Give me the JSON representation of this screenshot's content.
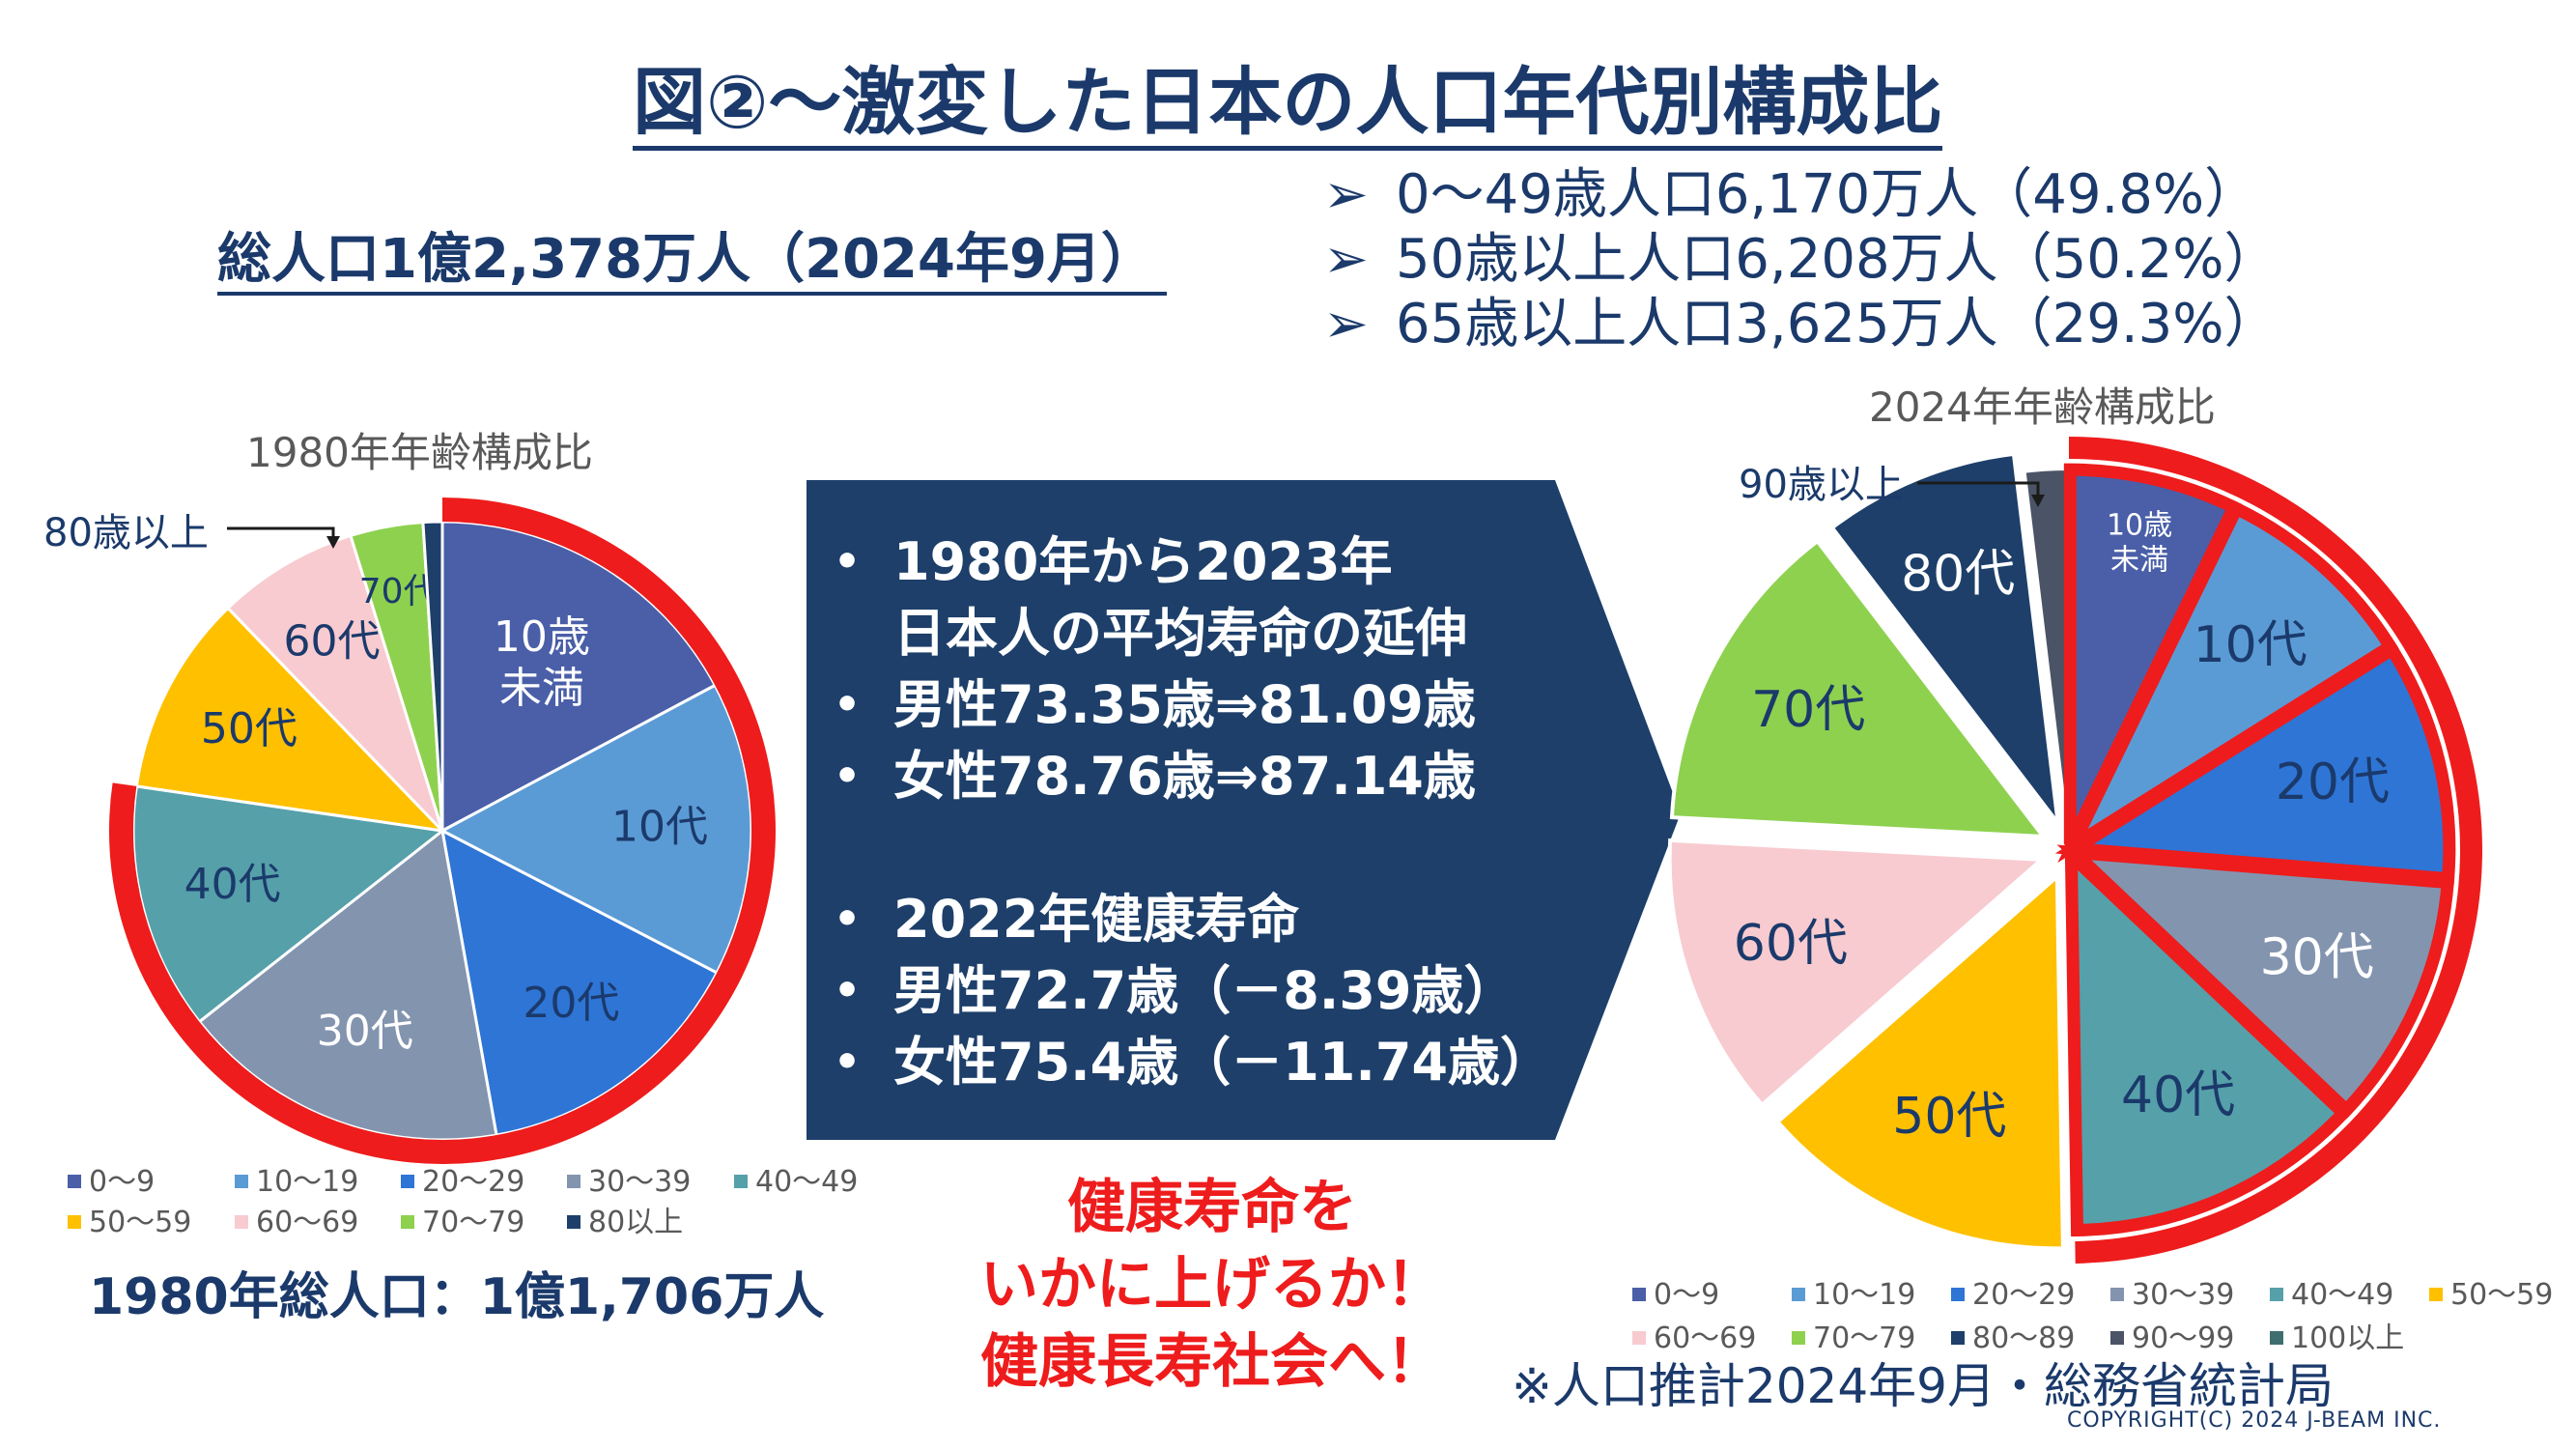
{
  "title": "図②～激変した日本の人口年代別構成比",
  "total_population": "総人口1億2,378万人（2024年9月）",
  "population_bullets": [
    {
      "mark": "➢",
      "text": "0～49歳人口6,170万人（49.8%）"
    },
    {
      "mark": "➢",
      "text": "50歳以上人口6,208万人（50.2%）"
    },
    {
      "mark": "➢",
      "text": "65歳以上人口3,625万人（29.3%）"
    }
  ],
  "life_expectancy_box": {
    "bullet": "•",
    "lines": [
      "1980年から2023年",
      "日本人の平均寿命の延伸",
      "男性73.35歳⇒81.09歳",
      "女性78.76歳⇒87.14歳",
      "2022年健康寿命",
      "男性72.7歳（－8.39歳）",
      "女性75.4歳（－11.74歳）"
    ]
  },
  "slogan": [
    "健康寿命を",
    "いかに上げるか！",
    "健康長寿社会へ！"
  ],
  "population_1980": "1980年総人口：1億1,706万人",
  "source": "※人口推計2024年9月・総務省統計局",
  "copyright": "COPYRIGHT(C) 2024 J-BEAM INC.",
  "colors": {
    "title_text": "#1b3a6b",
    "arrow_box": "#1d3f6a",
    "highlight_ring": "#ee1c1c"
  },
  "chart_data": [
    {
      "type": "pie",
      "title": "1980年年齢構成比",
      "categories": [
        "0～9",
        "10～19",
        "20～29",
        "30～39",
        "40～49",
        "50～59",
        "60～69",
        "70～79",
        "80以上"
      ],
      "slice_labels": [
        "10歳\n未満",
        "10代",
        "20代",
        "30代",
        "40代",
        "50代",
        "60代",
        "70代",
        ""
      ],
      "values": [
        17.2,
        15.4,
        14.6,
        17.2,
        12.9,
        10.5,
        7.4,
        3.8,
        1.0
      ],
      "colors": [
        "#4a5fa8",
        "#5b9bd5",
        "#2e75d6",
        "#8394af",
        "#56a0aa",
        "#ffc000",
        "#f8cbd0",
        "#8ed14f",
        "#1d3f6a"
      ],
      "callout": "80歳以上",
      "highlighted_categories": [
        "0～9",
        "10～19",
        "20～29",
        "30～39",
        "40～49"
      ],
      "legend_placement": "bottom"
    },
    {
      "type": "pie",
      "title": "2024年年齢構成比",
      "categories": [
        "0～9",
        "10～19",
        "20～29",
        "30～39",
        "40～49",
        "50～59",
        "60～69",
        "70～79",
        "80～89",
        "90～99",
        "100以上"
      ],
      "slice_labels": [
        "10歳\n未満",
        "10代",
        "20代",
        "30代",
        "40代",
        "50代",
        "60代",
        "70代",
        "80代",
        "",
        ""
      ],
      "values": [
        7.2,
        8.9,
        10.2,
        10.8,
        12.7,
        13.8,
        12.3,
        13.8,
        8.5,
        1.8,
        0.1
      ],
      "colors": [
        "#4a5fa8",
        "#5b9bd5",
        "#2e75d6",
        "#8394af",
        "#56a0aa",
        "#ffc000",
        "#f8cbd0",
        "#8ed14f",
        "#1d3f6a",
        "#4a5466",
        "#3f6e6e"
      ],
      "callout": "90歳以上",
      "highlighted_categories": [
        "0～9",
        "10～19",
        "20～29",
        "30～39",
        "40～49"
      ],
      "legend_placement": "bottom"
    }
  ]
}
